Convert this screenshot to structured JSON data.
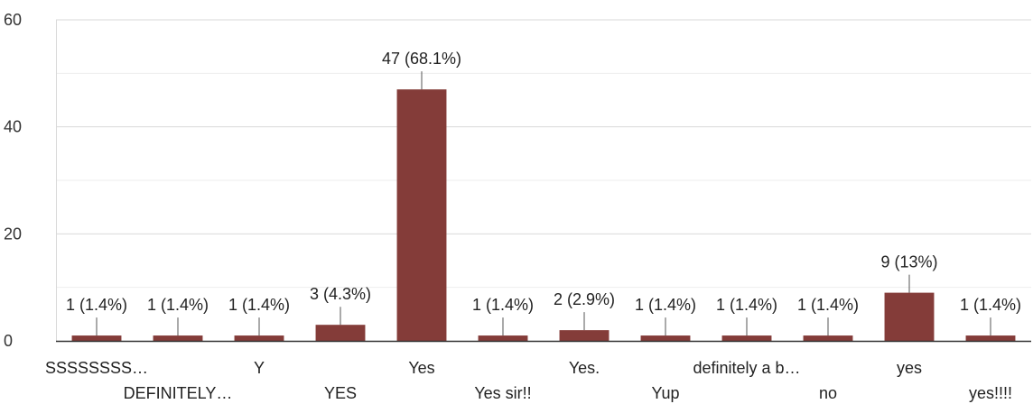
{
  "chart_data": {
    "type": "bar",
    "title": "",
    "xlabel": "",
    "ylabel": "",
    "ylim": [
      0,
      60
    ],
    "yticks": [
      0,
      20,
      40,
      60
    ],
    "grid": true,
    "bar_color": "#843c39",
    "categories": [
      "SSSSSSSS…",
      "DEFINITELY…",
      "Y",
      "YES",
      "Yes",
      "Yes sir!!",
      "Yes.",
      "Yup",
      "definitely a b…",
      "no",
      "yes",
      "yes!!!!"
    ],
    "values": [
      1,
      1,
      1,
      3,
      47,
      1,
      2,
      1,
      1,
      1,
      9,
      1
    ],
    "data_labels": [
      "1 (1.4%)",
      "1 (1.4%)",
      "1 (1.4%)",
      "3 (4.3%)",
      "47 (68.1%)",
      "1 (1.4%)",
      "2 (2.9%)",
      "1 (1.4%)",
      "1 (1.4%)",
      "1 (1.4%)",
      "9 (13%)",
      "1 (1.4%)"
    ]
  }
}
